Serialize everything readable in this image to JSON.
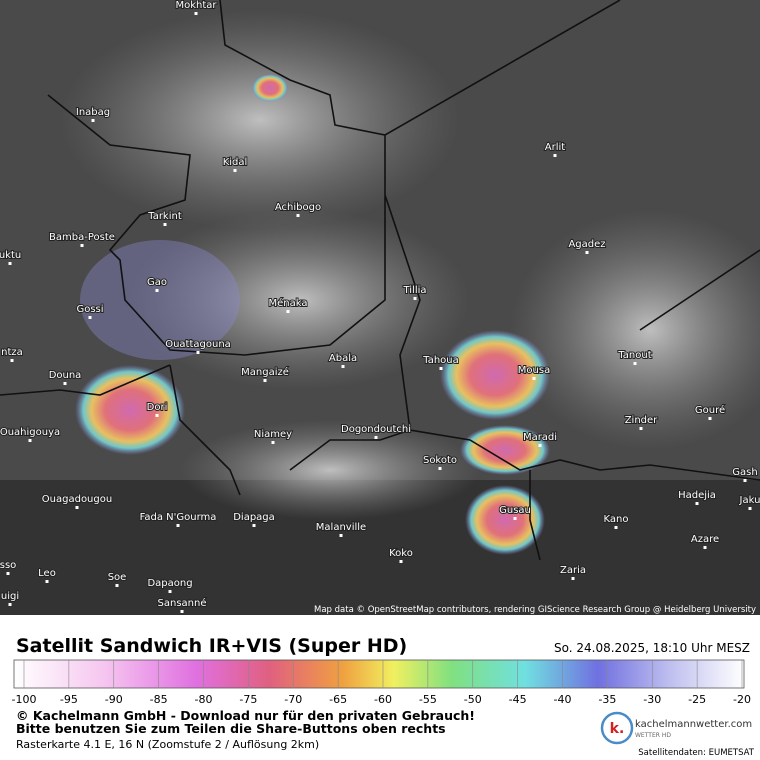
{
  "map": {
    "cities": [
      "Mokhtar",
      "Inabag",
      "Kidal",
      "Tarkint",
      "Achibogo",
      "Arlit",
      "Bamba-Poste",
      "Agadez",
      "uktu",
      "Gao",
      "Tillia",
      "Gossi",
      "Ménaka",
      "Ouattagouna",
      "Abala",
      "Tahoua",
      "Tanout",
      "ntza",
      "Douna",
      "Mangaizé",
      "Mousa",
      "Dori",
      "Zinder",
      "Gouré",
      "Ouahigouya",
      "Niamey",
      "Dogondoutchi",
      "Maradi",
      "Sokoto",
      "Gash",
      "Hadejia",
      "Ouagadougou",
      "Gusau",
      "Jaku",
      "Fada N'Gourma",
      "Diapaga",
      "Kano",
      "Malanville",
      "Azare",
      "Koko",
      "sso",
      "Leo",
      "Zaria",
      "Soe",
      "Dapaong",
      "uigi",
      "Sansanné"
    ],
    "attribution": "Map data © OpenStreetMap contributors, rendering GIScience Research Group @ Heidelberg University"
  },
  "header": {
    "title": "Satellit Sandwich IR+VIS (Super HD)",
    "date": "So. 24.08.2025, 18:10 Uhr MESZ"
  },
  "legend": {
    "ticks": [
      -100,
      -95,
      -90,
      -85,
      -80,
      -75,
      -70,
      -65,
      -60,
      -55,
      -50,
      -45,
      -40,
      -35,
      -30,
      -25,
      -20
    ]
  },
  "footer": {
    "copyright": "© Kachelmann GmbH - Download nur für den privaten Gebrauch!",
    "share": "Bitte benutzen Sie zum Teilen die Share-Buttons oben rechts",
    "raster": "Rasterkarte 4.1 E, 16 N  (Zoomstufe 2 / Auflösung 2km)",
    "logo_mark": "k.",
    "logo_site": "kachelmannwetter.com",
    "logo_sub": "WETTER HD",
    "source": "Satellitendaten: EUMETSAT"
  }
}
